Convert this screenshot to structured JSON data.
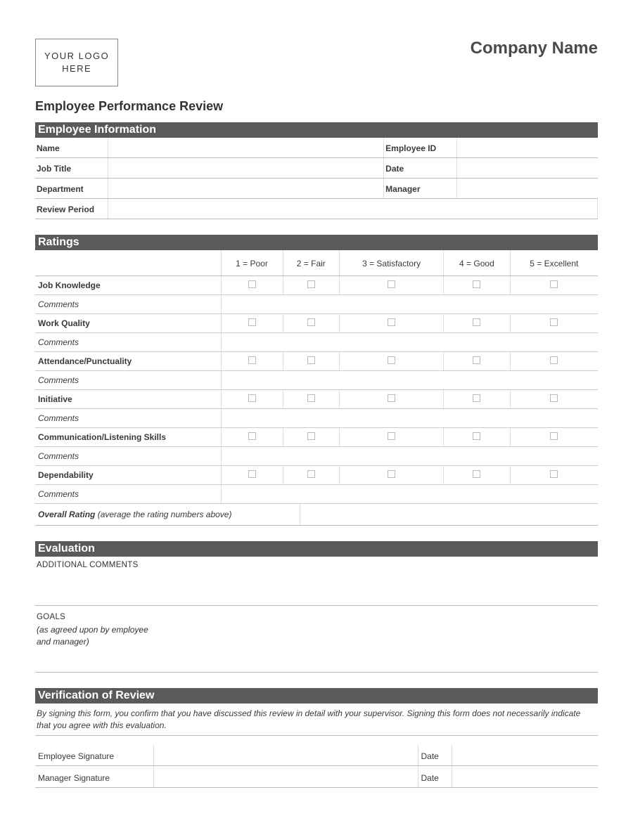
{
  "header": {
    "logo_line1": "YOUR LOGO",
    "logo_line2": "HERE",
    "company_name": "Company Name"
  },
  "form_title": "Employee Performance Review",
  "sections": {
    "employee_info": {
      "title": "Employee Information",
      "fields": {
        "name": "Name",
        "employee_id": "Employee ID",
        "job_title": "Job Title",
        "date": "Date",
        "department": "Department",
        "manager": "Manager",
        "review_period": "Review Period"
      }
    },
    "ratings": {
      "title": "Ratings",
      "scale": [
        "1 = Poor",
        "2 = Fair",
        "3 = Satisfactory",
        "4 = Good",
        "5 = Excellent"
      ],
      "categories": [
        "Job Knowledge",
        "Work Quality",
        "Attendance/Punctuality",
        "Initiative",
        "Communication/Listening Skills",
        "Dependability"
      ],
      "comments_label": "Comments",
      "overall_label": "Overall Rating",
      "overall_note": "(average the rating numbers above)"
    },
    "evaluation": {
      "title": "Evaluation",
      "additional_comments": "ADDITIONAL COMMENTS",
      "goals": "GOALS",
      "goals_note_line1": "(as agreed upon by employee",
      "goals_note_line2": "and manager)"
    },
    "verification": {
      "title": "Verification of Review",
      "note": "By signing this form, you confirm that you have discussed this review in detail with your supervisor. Signing this form does not necessarily indicate that you agree with this evaluation.",
      "employee_signature": "Employee Signature",
      "manager_signature": "Manager Signature",
      "date": "Date"
    }
  },
  "colors": {
    "section_header_bg": "#5a5a5a",
    "section_header_text": "#ffffff",
    "border": "#bbbbbb",
    "light_border": "#dddddd",
    "text": "#3a3a3a"
  }
}
